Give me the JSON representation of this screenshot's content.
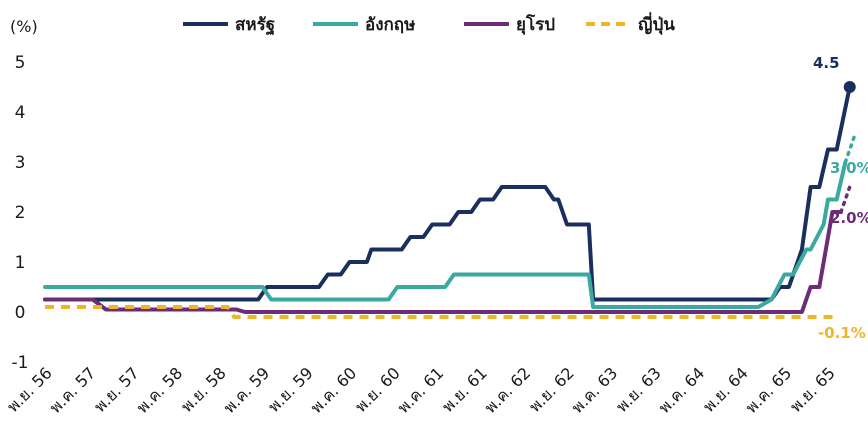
{
  "chart_data": {
    "type": "line",
    "title": "",
    "ylabel": "(%)",
    "xlabel": "",
    "ylim": [
      -1,
      5
    ],
    "yticks": [
      "5",
      "4",
      "3",
      "2",
      "1",
      "0",
      "-1"
    ],
    "grid": false,
    "legend_position": "top",
    "x_tick_labels": [
      "พ.ย. 56",
      "พ.ค. 57",
      "พ.ย. 57",
      "พ.ค. 58",
      "พ.ย. 58",
      "พ.ค. 59",
      "พ.ย. 59",
      "พ.ค. 60",
      "พ.ย. 60",
      "พ.ค. 61",
      "พ.ย. 61",
      "พ.ค. 62",
      "พ.ย. 62",
      "พ.ค. 63",
      "พ.ย. 63",
      "พ.ค. 64",
      "พ.ย. 64",
      "พ.ค. 65",
      "พ.ย. 65"
    ],
    "series": [
      {
        "name": "สหรัฐ",
        "color": "#1b2f5e",
        "end_label": "4.5",
        "points": [
          [
            0,
            0.25
          ],
          [
            3.5,
            0.25
          ],
          [
            4.9,
            0.25
          ],
          [
            5.1,
            0.5
          ],
          [
            6.3,
            0.5
          ],
          [
            6.5,
            0.75
          ],
          [
            6.8,
            0.75
          ],
          [
            7.0,
            1.0
          ],
          [
            7.4,
            1.0
          ],
          [
            7.5,
            1.25
          ],
          [
            8.2,
            1.25
          ],
          [
            8.4,
            1.5
          ],
          [
            8.7,
            1.5
          ],
          [
            8.9,
            1.75
          ],
          [
            9.3,
            1.75
          ],
          [
            9.5,
            2.0
          ],
          [
            9.8,
            2.0
          ],
          [
            10.0,
            2.25
          ],
          [
            10.3,
            2.25
          ],
          [
            10.5,
            2.5
          ],
          [
            11.5,
            2.5
          ],
          [
            11.7,
            2.25
          ],
          [
            11.8,
            2.25
          ],
          [
            12.0,
            1.75
          ],
          [
            12.5,
            1.75
          ],
          [
            12.6,
            0.25
          ],
          [
            16.7,
            0.25
          ],
          [
            16.9,
            0.5
          ],
          [
            17.1,
            0.5
          ],
          [
            17.4,
            1.25
          ],
          [
            17.6,
            2.5
          ],
          [
            17.8,
            2.5
          ],
          [
            18.0,
            3.25
          ],
          [
            18.2,
            3.25
          ],
          [
            18.5,
            4.5
          ]
        ],
        "projection": [],
        "marker_end": true
      },
      {
        "name": "อังกฤษ",
        "color": "#3aa99f",
        "end_label": "3.0%",
        "points": [
          [
            0,
            0.5
          ],
          [
            5.0,
            0.5
          ],
          [
            5.2,
            0.25
          ],
          [
            7.9,
            0.25
          ],
          [
            8.1,
            0.5
          ],
          [
            9.2,
            0.5
          ],
          [
            9.4,
            0.75
          ],
          [
            12.5,
            0.75
          ],
          [
            12.6,
            0.1
          ],
          [
            16.4,
            0.1
          ],
          [
            16.7,
            0.25
          ],
          [
            17.0,
            0.75
          ],
          [
            17.2,
            0.75
          ],
          [
            17.5,
            1.25
          ],
          [
            17.6,
            1.25
          ],
          [
            17.9,
            1.75
          ],
          [
            18.0,
            2.25
          ],
          [
            18.2,
            2.25
          ],
          [
            18.4,
            3.0
          ]
        ],
        "projection": [
          [
            18.4,
            3.0
          ],
          [
            18.6,
            3.5
          ]
        ]
      },
      {
        "name": "ยุโรป",
        "color": "#6b2d75",
        "end_label": "2.0%",
        "points": [
          [
            0,
            0.25
          ],
          [
            1.1,
            0.25
          ],
          [
            1.4,
            0.05
          ],
          [
            4.4,
            0.05
          ],
          [
            4.6,
            0.0
          ],
          [
            17.4,
            0.0
          ],
          [
            17.6,
            0.5
          ],
          [
            17.8,
            0.5
          ],
          [
            18.1,
            2.0
          ],
          [
            18.3,
            2.0
          ]
        ],
        "projection": [
          [
            18.3,
            2.0
          ],
          [
            18.5,
            2.5
          ]
        ]
      },
      {
        "name": "ญี่ปุ่น",
        "color": "#f0b428",
        "end_label": "-0.1%",
        "dashed": true,
        "points": [
          [
            0,
            0.1
          ],
          [
            4.2,
            0.1
          ],
          [
            4.35,
            -0.1
          ],
          [
            18.2,
            -0.1
          ]
        ],
        "projection": []
      }
    ]
  }
}
